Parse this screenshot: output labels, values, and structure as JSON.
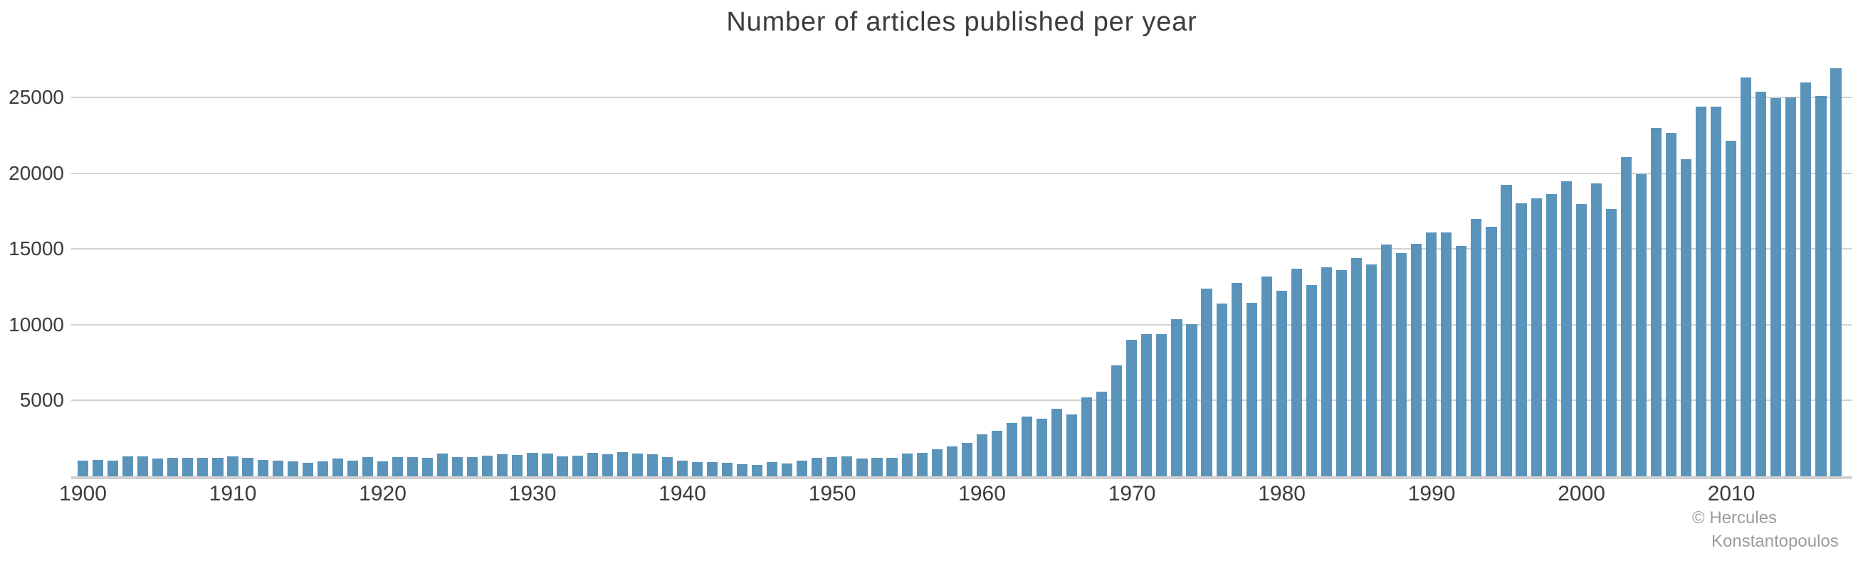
{
  "title": "Number of articles published per year",
  "credit": {
    "line1": "© Hercules",
    "line2": "Konstantopoulos"
  },
  "colors": {
    "bar": "#5b94ba",
    "gridline": "#d2d2d2",
    "axis_line": "#d0d0d0",
    "tick_label": "#3c3c3c",
    "title": "#3c3c3c",
    "credit": "#9c9c9c",
    "background": "#ffffff"
  },
  "y_axis": {
    "tick_values": [
      5000,
      10000,
      15000,
      20000,
      25000
    ],
    "tick_labels": [
      "5000",
      "10000",
      "15000",
      "20000",
      "25000"
    ],
    "max_tick": 25000
  },
  "x_axis": {
    "tick_years": [
      1900,
      1910,
      1920,
      1930,
      1940,
      1950,
      1960,
      1970,
      1980,
      1990,
      2000,
      2010
    ],
    "tick_labels": [
      "1900",
      "1910",
      "1920",
      "1930",
      "1940",
      "1950",
      "1960",
      "1970",
      "1980",
      "1990",
      "2000",
      "2010"
    ]
  },
  "chart_data": {
    "type": "bar",
    "title": "Number of articles published per year",
    "xlabel": "",
    "ylabel": "",
    "legend": false,
    "grid": "horizontal",
    "start_year": 1900,
    "end_year": 2017,
    "ylim": [
      0,
      28600
    ],
    "x": [
      1900,
      1901,
      1902,
      1903,
      1904,
      1905,
      1906,
      1907,
      1908,
      1909,
      1910,
      1911,
      1912,
      1913,
      1914,
      1915,
      1916,
      1917,
      1918,
      1919,
      1920,
      1921,
      1922,
      1923,
      1924,
      1925,
      1926,
      1927,
      1928,
      1929,
      1930,
      1931,
      1932,
      1933,
      1934,
      1935,
      1936,
      1937,
      1938,
      1939,
      1940,
      1941,
      1942,
      1943,
      1944,
      1945,
      1946,
      1947,
      1948,
      1949,
      1950,
      1951,
      1952,
      1953,
      1954,
      1955,
      1956,
      1957,
      1958,
      1959,
      1960,
      1961,
      1962,
      1963,
      1964,
      1965,
      1966,
      1967,
      1968,
      1969,
      1970,
      1971,
      1972,
      1973,
      1974,
      1975,
      1976,
      1977,
      1978,
      1979,
      1980,
      1981,
      1982,
      1983,
      1984,
      1985,
      1986,
      1987,
      1988,
      1989,
      1990,
      1991,
      1992,
      1993,
      1994,
      1995,
      1996,
      1997,
      1998,
      1999,
      2000,
      2001,
      2002,
      2003,
      2004,
      2005,
      2006,
      2007,
      2008,
      2009,
      2010,
      2011,
      2012,
      2013,
      2014,
      2015,
      2016,
      2017
    ],
    "values": [
      1050,
      1100,
      1020,
      1300,
      1310,
      1180,
      1210,
      1210,
      1210,
      1240,
      1300,
      1240,
      1060,
      1020,
      980,
      900,
      980,
      1160,
      1010,
      1260,
      980,
      1260,
      1290,
      1220,
      1490,
      1260,
      1290,
      1380,
      1470,
      1430,
      1550,
      1500,
      1320,
      1380,
      1570,
      1440,
      1580,
      1490,
      1440,
      1290,
      1040,
      930,
      930,
      880,
      790,
      730,
      960,
      860,
      1040,
      1230,
      1280,
      1320,
      1150,
      1200,
      1240,
      1480,
      1550,
      1760,
      1990,
      2210,
      2780,
      3000,
      3500,
      3960,
      3820,
      4440,
      4070,
      5200,
      5590,
      7310,
      9000,
      9390,
      9390,
      10360,
      10020,
      12390,
      11420,
      12750,
      11450,
      13200,
      12250,
      13700,
      12600,
      13800,
      13600,
      14400,
      14000,
      15300,
      14750,
      15350,
      16100,
      16100,
      15200,
      17000,
      16450,
      19250,
      18000,
      18330,
      18620,
      19480,
      17970,
      19330,
      17650,
      21050,
      19950,
      22980,
      22670,
      20940,
      24380,
      24380,
      22140,
      26330,
      25360,
      24950,
      25000,
      25990,
      25080,
      26920
    ]
  }
}
